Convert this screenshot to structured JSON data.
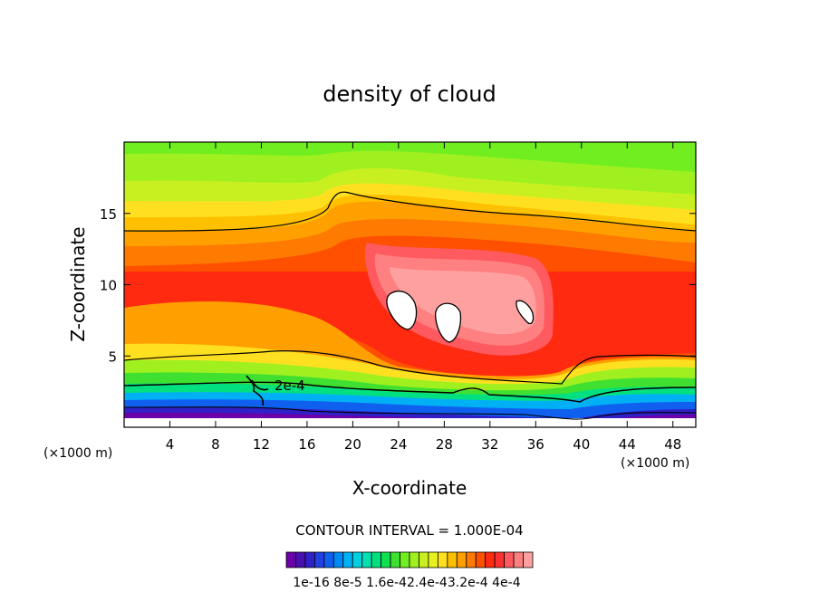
{
  "chart_data": {
    "type": "contour",
    "title": "density of cloud",
    "xlabel": "X-coordinate",
    "ylabel": "Z-coordinate",
    "x_unit_label": "(×1000 m)",
    "xlim": [
      0,
      50
    ],
    "ylim": [
      0,
      20
    ],
    "x_ticks": [
      4,
      8,
      12,
      16,
      20,
      24,
      28,
      32,
      36,
      40,
      44,
      48
    ],
    "y_ticks": [
      5,
      10,
      15
    ],
    "contour_interval_text": "CONTOUR INTERVAL = 1.000E-04",
    "contour_label": "2e-4",
    "colorbar_labels": [
      "1e-16",
      "8e-5",
      "1.6e-4",
      "2.4e-4",
      "3.2e-4",
      "4e-4"
    ],
    "colorbar_label_text": "1e-16 8e-5 1.6e-42.4e-43.2e-4 4e-4",
    "colorbar_colors": [
      "#6a00a8",
      "#4a0fb0",
      "#3020c8",
      "#2040e0",
      "#1060f0",
      "#0088f5",
      "#00b0f5",
      "#00d0e0",
      "#00e0b0",
      "#00e080",
      "#10e050",
      "#40e030",
      "#70ee20",
      "#a0f020",
      "#c8f020",
      "#e8f020",
      "#ffe020",
      "#ffc000",
      "#ffa000",
      "#ff7a00",
      "#ff5000",
      "#ff2a10",
      "#ff3030",
      "#ff5a60",
      "#ff8080",
      "#ffa0a0"
    ],
    "regions": [
      {
        "value": "peak",
        "x": [
          23,
          36
        ],
        "z": [
          6,
          11
        ]
      },
      {
        "value": "zero-holes",
        "centers": [
          [
            24.5,
            8.8
          ],
          [
            28.2,
            8.0
          ],
          [
            35,
            8.3
          ]
        ]
      }
    ]
  }
}
